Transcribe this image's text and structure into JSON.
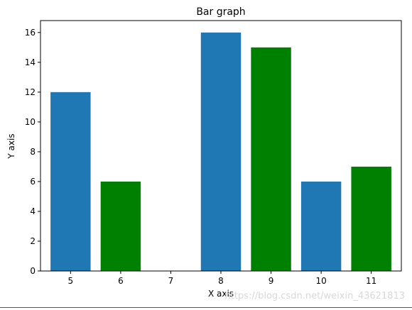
{
  "chart_data": {
    "type": "bar",
    "title": "Bar graph",
    "xlabel": "X axis",
    "ylabel": "Y axis",
    "categories": [
      "5",
      "6",
      "7",
      "8",
      "9",
      "10",
      "11"
    ],
    "series": [
      {
        "x": [
          5,
          8,
          10
        ],
        "values": [
          12,
          16,
          6
        ],
        "color": "#1f77b4"
      },
      {
        "x": [
          6,
          9,
          11
        ],
        "values": [
          6,
          15,
          7
        ],
        "color": "#008000"
      }
    ],
    "xlim": [
      4.4,
      11.6
    ],
    "ylim": [
      0,
      16.8
    ],
    "y_ticks": [
      0,
      2,
      4,
      6,
      8,
      10,
      12,
      14,
      16
    ],
    "x_ticks": [
      5,
      6,
      7,
      8,
      9,
      10,
      11
    ],
    "grid": false
  },
  "watermark": "https://blog.csdn.net/weixin_43621813"
}
